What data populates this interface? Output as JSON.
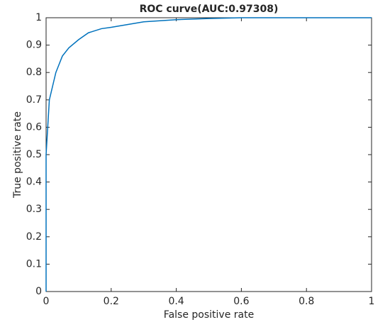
{
  "chart_data": {
    "type": "line",
    "title": "ROC curve(AUC:0.97308)",
    "x_label": "False positive rate",
    "y_label": "True positive rate",
    "x": [
      0,
      0,
      0.005,
      0.01,
      0.02,
      0.03,
      0.04,
      0.05,
      0.07,
      0.1,
      0.13,
      0.17,
      0.2,
      0.25,
      0.3,
      0.4,
      0.5,
      0.6,
      1
    ],
    "values": [
      0,
      0.5,
      0.6,
      0.7,
      0.75,
      0.8,
      0.83,
      0.86,
      0.89,
      0.92,
      0.945,
      0.96,
      0.965,
      0.975,
      0.985,
      0.993,
      0.997,
      1,
      1
    ],
    "color": "#0072bd",
    "xlim": [
      0,
      1
    ],
    "xticks": [
      0,
      0.2,
      0.4,
      0.6,
      0.8,
      1
    ],
    "ylim": [
      0,
      1
    ],
    "yticks": [
      0,
      0.1,
      0.2,
      0.3,
      0.4,
      0.5,
      0.6,
      0.7,
      0.8,
      0.9,
      1
    ],
    "grid": false
  }
}
